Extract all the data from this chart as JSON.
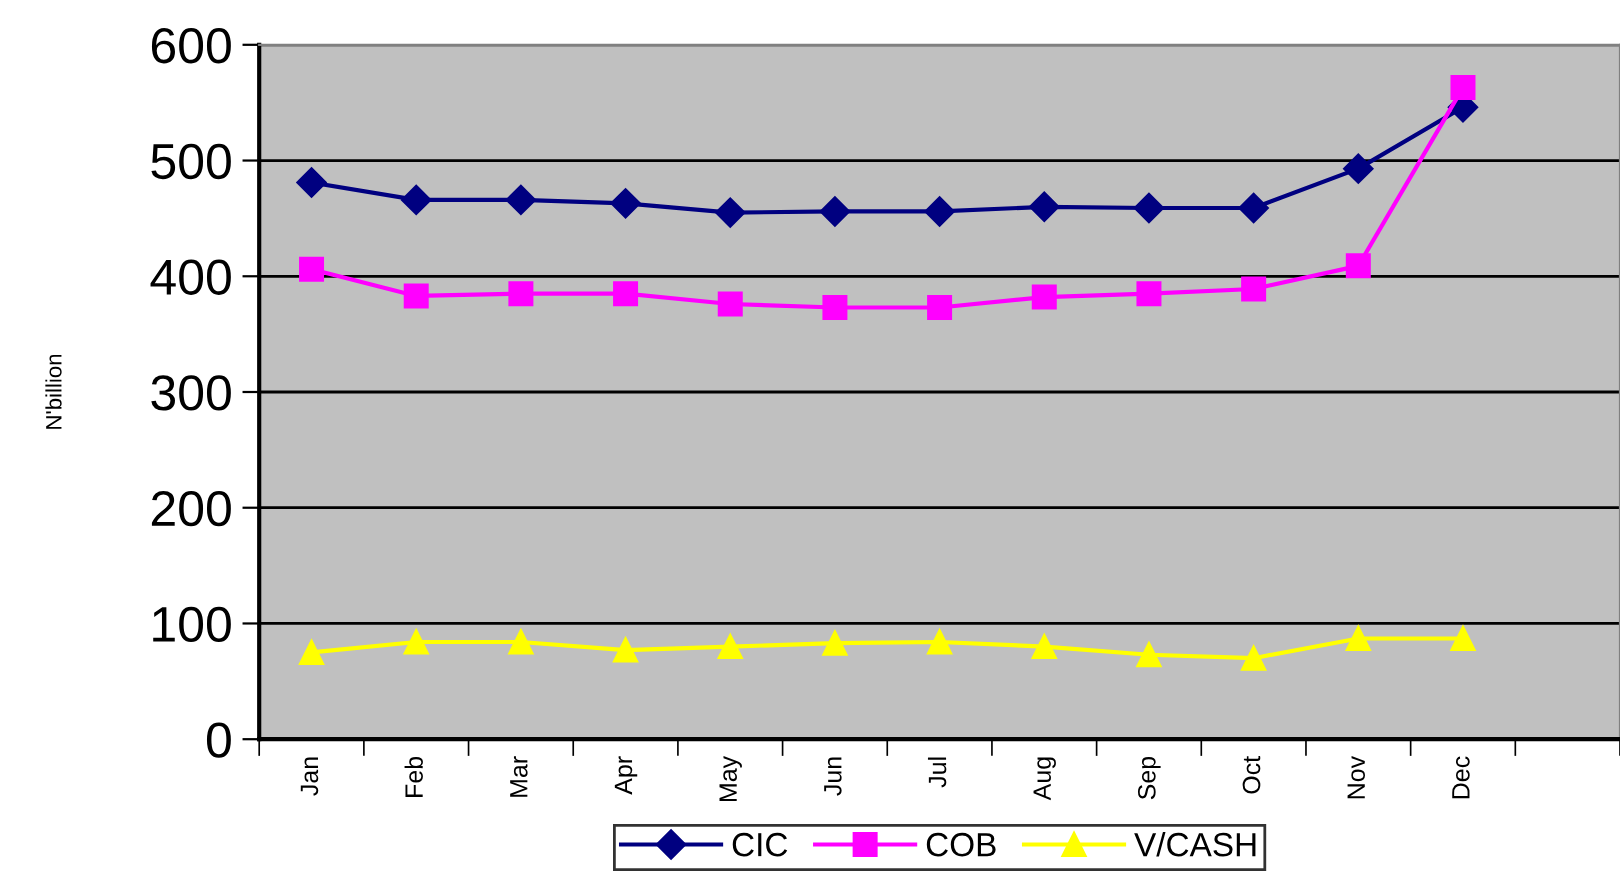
{
  "chart_data": {
    "type": "line",
    "ylabel": "N'billion",
    "categories": [
      "Jan",
      "Feb",
      "Mar",
      "Apr",
      "May",
      "Jun",
      "Jul",
      "Aug",
      "Sep",
      "Oct",
      "Nov",
      "Dec",
      null
    ],
    "series": [
      {
        "name": "CIC",
        "color": "#000080",
        "marker": "diamond",
        "values": [
          481,
          466,
          466,
          463,
          455,
          456,
          456,
          460,
          459,
          459,
          493,
          546,
          null
        ]
      },
      {
        "name": "COB",
        "color": "#ff00ff",
        "marker": "square",
        "values": [
          406,
          383,
          385,
          385,
          376,
          373,
          373,
          382,
          385,
          389,
          409,
          563,
          null
        ]
      },
      {
        "name": "V/CASH",
        "color": "#ffff00",
        "marker": "triangle",
        "values": [
          75,
          84,
          84,
          77,
          80,
          83,
          84,
          80,
          73,
          70,
          87,
          87,
          null
        ]
      }
    ],
    "ylim": [
      0,
      600
    ],
    "yticks": [
      0,
      100,
      200,
      300,
      400,
      500,
      600
    ],
    "grid": "y",
    "legend": "bottom",
    "line_style": "solid"
  }
}
